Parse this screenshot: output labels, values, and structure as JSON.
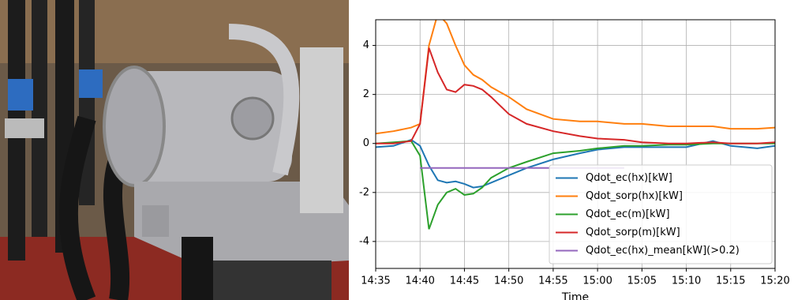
{
  "chart_data": {
    "type": "line",
    "xlabel": "Time",
    "x": [
      "14:35",
      "14:37",
      "14:39",
      "14:40",
      "14:41",
      "14:42",
      "14:43",
      "14:44",
      "14:45",
      "14:46",
      "14:47",
      "14:48",
      "14:50",
      "14:52",
      "14:55",
      "14:58",
      "15:00",
      "15:03",
      "15:05",
      "15:08",
      "15:10",
      "15:13",
      "15:15",
      "15:18",
      "15:20"
    ],
    "series": [
      {
        "name": "Qdot_ec(hx)[kW]",
        "color": "#1f77b4",
        "values": [
          -0.15,
          -0.1,
          0.15,
          -0.1,
          -0.9,
          -1.5,
          -1.6,
          -1.55,
          -1.65,
          -1.8,
          -1.75,
          -1.6,
          -1.3,
          -1.0,
          -0.65,
          -0.4,
          -0.25,
          -0.15,
          -0.15,
          -0.15,
          -0.15,
          0.1,
          -0.1,
          -0.2,
          -0.1
        ]
      },
      {
        "name": "Qdot_sorp(hx)[kW]",
        "color": "#ff7f0e",
        "values": [
          0.4,
          0.5,
          0.65,
          0.8,
          4.0,
          5.3,
          4.9,
          4.0,
          3.2,
          2.8,
          2.6,
          2.3,
          1.9,
          1.4,
          1.0,
          0.9,
          0.9,
          0.8,
          0.8,
          0.7,
          0.7,
          0.7,
          0.6,
          0.6,
          0.65
        ]
      },
      {
        "name": "Qdot_ec(m)[kW]",
        "color": "#2ca02c",
        "values": [
          0.0,
          0.05,
          0.1,
          -0.5,
          -3.5,
          -2.5,
          -2.0,
          -1.85,
          -2.1,
          -2.05,
          -1.8,
          -1.4,
          -1.0,
          -0.75,
          -0.4,
          -0.3,
          -0.2,
          -0.1,
          -0.1,
          -0.05,
          -0.05,
          0.0,
          0.0,
          0.0,
          0.0
        ]
      },
      {
        "name": "Qdot_sorp(m)[kW]",
        "color": "#d62728",
        "values": [
          0.0,
          0.0,
          0.1,
          0.8,
          3.9,
          2.9,
          2.2,
          2.1,
          2.4,
          2.35,
          2.2,
          1.9,
          1.2,
          0.8,
          0.5,
          0.3,
          0.2,
          0.15,
          0.05,
          0.0,
          0.0,
          0.05,
          0.0,
          0.0,
          0.05
        ]
      },
      {
        "name": "Qdot_ec(hx)_mean[kW](>0.2)",
        "color": "#9467bd",
        "values": [
          null,
          null,
          null,
          -1.0,
          -1.0,
          -1.0,
          -1.0,
          -1.0,
          -1.0,
          -1.0,
          -1.0,
          -1.0,
          -1.0,
          -1.0,
          -1.0,
          -1.0,
          -1.0,
          -1.0,
          null,
          null,
          null,
          null,
          null,
          null,
          null
        ]
      }
    ],
    "xlim": [
      "14:35",
      "15:20"
    ],
    "xticks": [
      "14:35",
      "14:40",
      "14:45",
      "14:50",
      "14:55",
      "15:00",
      "15:05",
      "15:10",
      "15:15",
      "15:20"
    ],
    "ylim": [
      -5.1,
      5.05
    ],
    "yticks": [
      -4,
      -2,
      0,
      2,
      4
    ],
    "grid": true,
    "legend": "lower right"
  }
}
